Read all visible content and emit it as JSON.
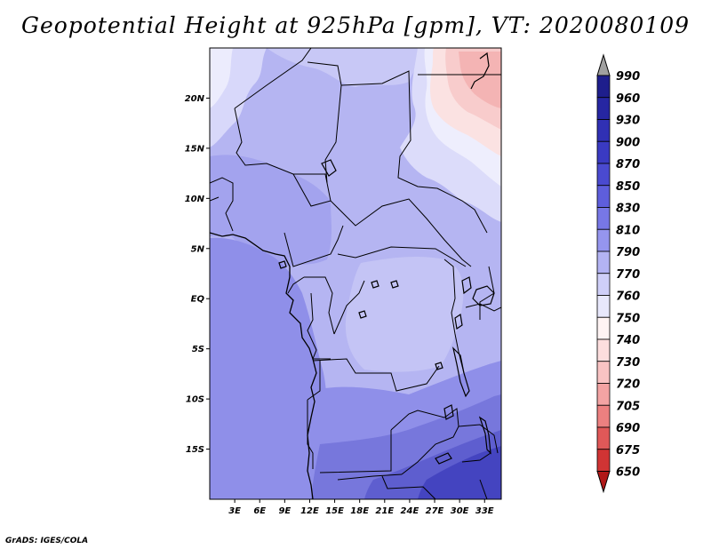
{
  "title": "Geopotential Height at 925hPa [gpm], VT: 2020080109",
  "credit": "GrADS: IGES/COLA",
  "lat_labels": [
    "20N",
    "15N",
    "10N",
    "5N",
    "EQ",
    "5S",
    "10S",
    "15S"
  ],
  "lat_values": [
    20,
    15,
    10,
    5,
    0,
    -5,
    -10,
    -15
  ],
  "lon_labels": [
    "3E",
    "6E",
    "9E",
    "12E",
    "15E",
    "18E",
    "21E",
    "24E",
    "27E",
    "30E",
    "33E"
  ],
  "lon_values": [
    3,
    6,
    9,
    12,
    15,
    18,
    21,
    24,
    27,
    30,
    33
  ],
  "extent": {
    "lon_min": 0,
    "lon_max": 35,
    "lat_min": -20,
    "lat_max": 25
  },
  "colorbar": {
    "levels": [
      "990",
      "960",
      "930",
      "900",
      "870",
      "850",
      "830",
      "810",
      "790",
      "770",
      "760",
      "750",
      "740",
      "730",
      "720",
      "705",
      "690",
      "675",
      "650"
    ],
    "colors": [
      "#1e1e8c",
      "#2626a2",
      "#3030b4",
      "#3a3ac2",
      "#4a4ad0",
      "#5e5edc",
      "#7777e6",
      "#9595ee",
      "#b3b3f3",
      "#cfcff8",
      "#e8e8fc",
      "#fff4f4",
      "#fddede",
      "#f9c3c3",
      "#f3a3a3",
      "#ec8080",
      "#e05858",
      "#d03434",
      "#bb1c1c"
    ],
    "top_arrow_color": "#a0a0a0",
    "bottom_arrow_color": "#b01818"
  },
  "field_colors": {
    "base": "#b5b5f2",
    "v790": "#c6c6f6",
    "v770": "#dcdcfa",
    "v760": "#eeeefd",
    "v830": "#a3a3ee",
    "v850": "#8d8de8",
    "v870": "#7777dc",
    "v900": "#5e5ecf",
    "v930": "#4444c0",
    "r750": "#fbe2e2",
    "r740": "#f8cccc",
    "r730": "#f4b4b4"
  }
}
